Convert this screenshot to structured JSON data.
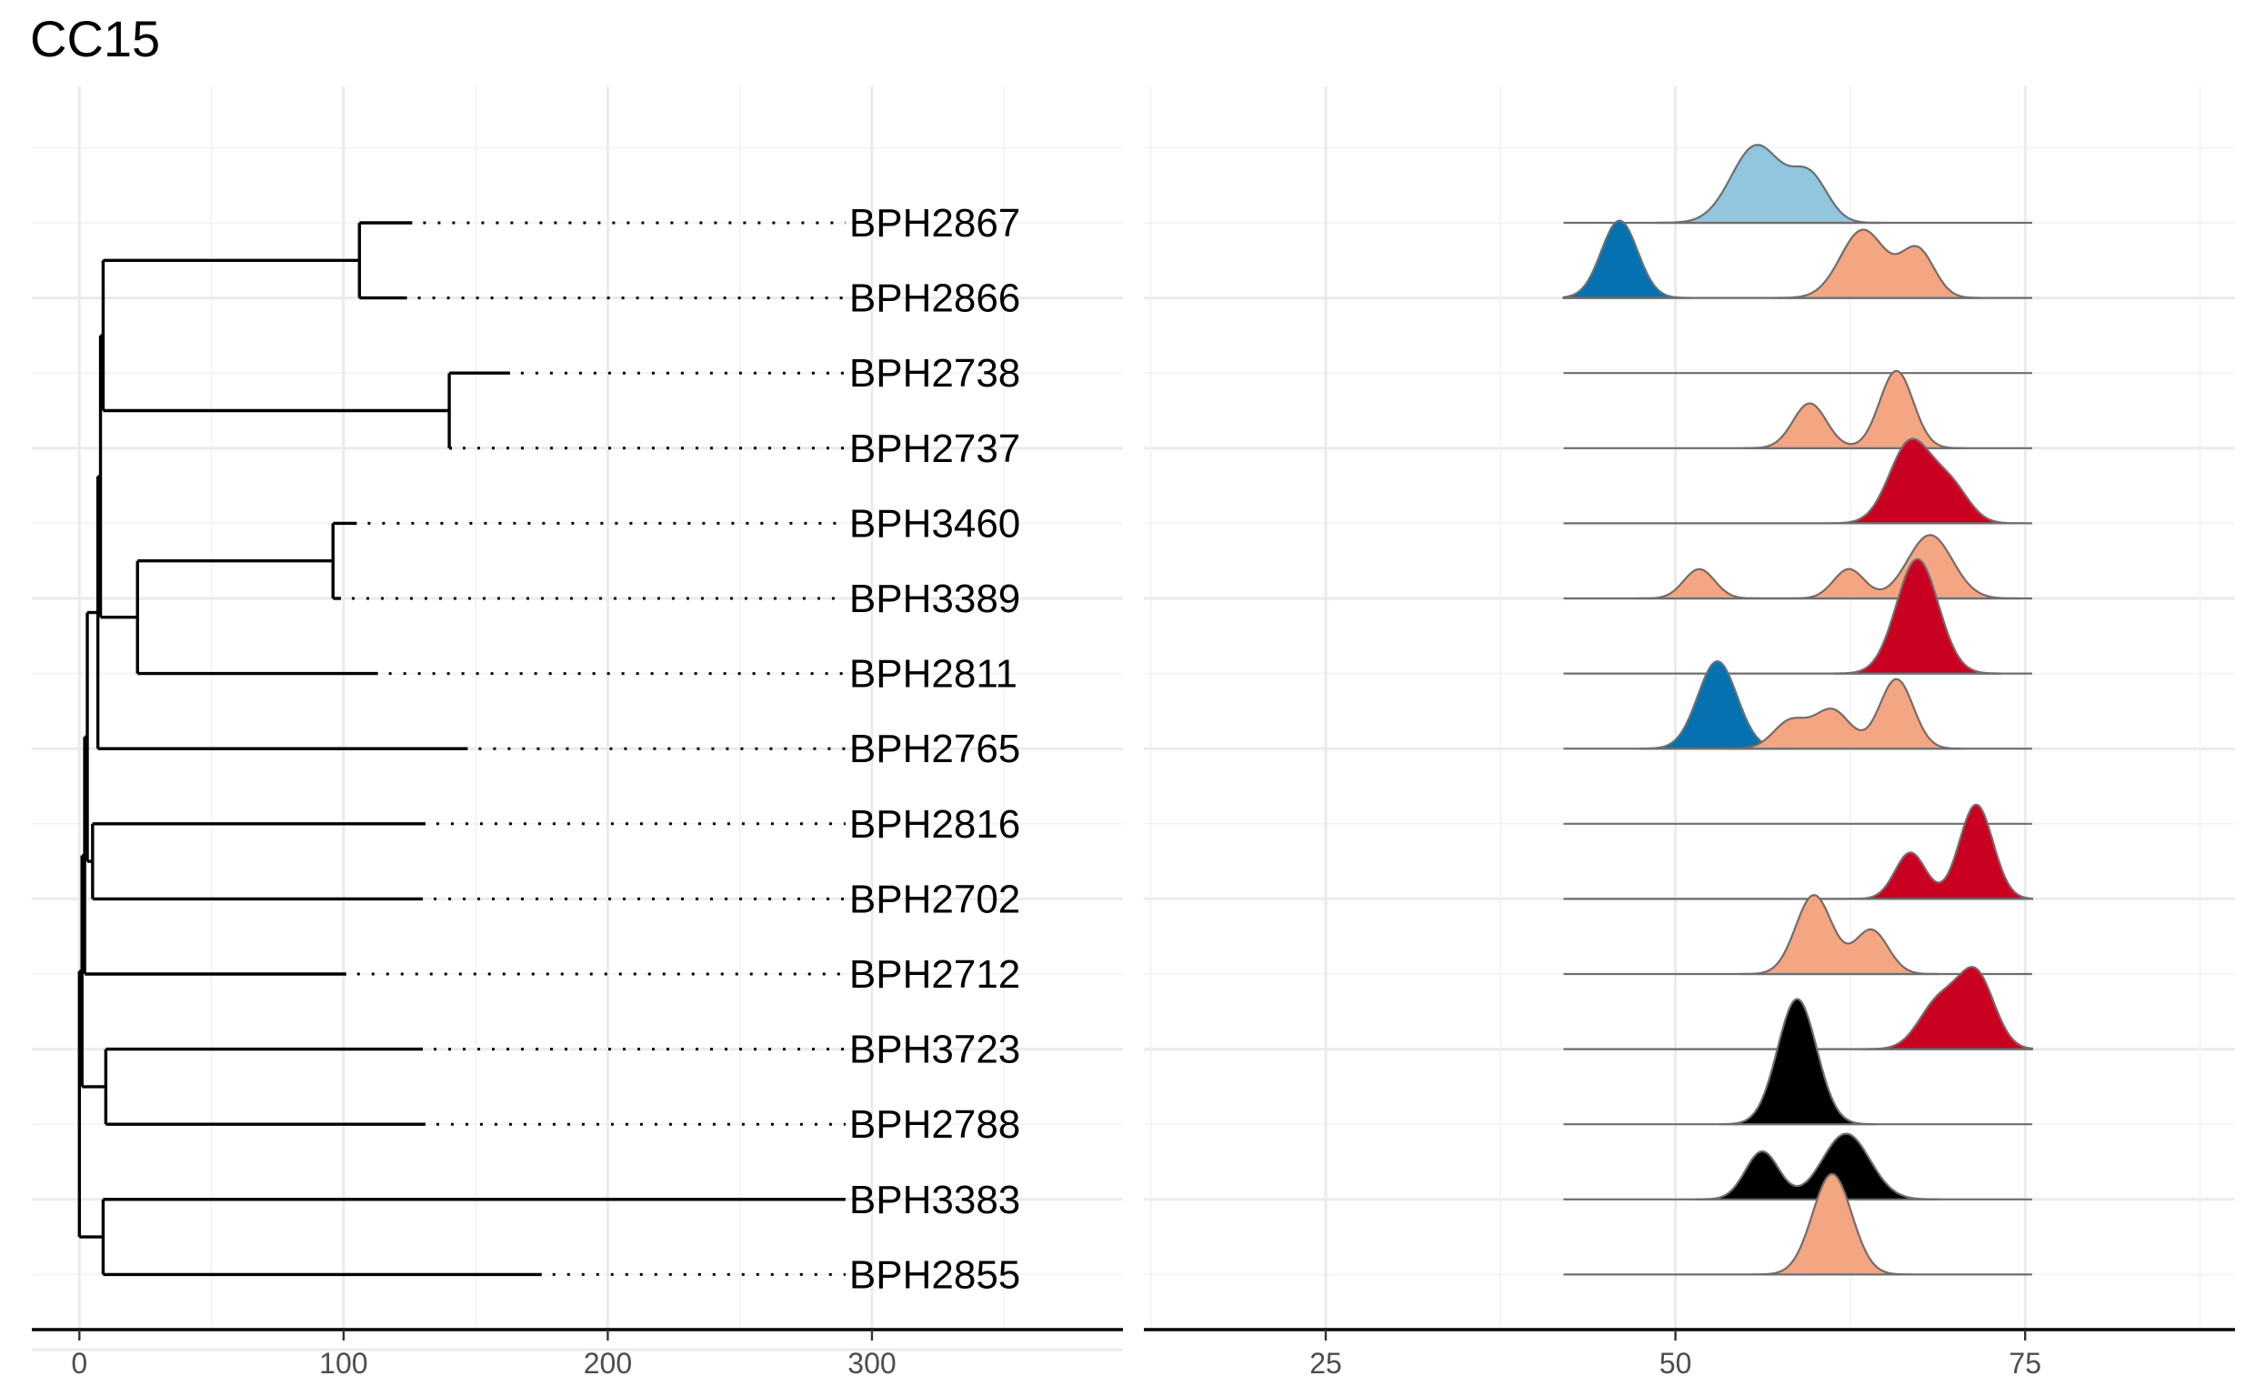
{
  "chart_data": [
    {
      "type": "dendrogram",
      "title": "CC15",
      "xlim": [
        -18,
        395
      ],
      "x_ticks": [
        0,
        100,
        200,
        300
      ],
      "grid": true,
      "tip_align_x": 290,
      "tips": [
        "BPH2867",
        "BPH2866",
        "BPH2738",
        "BPH2737",
        "BPH3460",
        "BPH3389",
        "BPH2811",
        "BPH2765",
        "BPH2816",
        "BPH2702",
        "BPH2712",
        "BPH3723",
        "BPH2788",
        "BPH3383",
        "BPH2855"
      ],
      "tree": {
        "x": 0,
        "children": [
          {
            "x": 1,
            "children": [
              {
                "x": 2,
                "children": [
                  {
                    "x": 3,
                    "children": [
                      {
                        "x": 7,
                        "children": [
                          {
                            "x": 8,
                            "children": [
                              {
                                "x": 9,
                                "children": [
                                  {
                                    "x": 106,
                                    "children": [
                                      {
                                        "tip": "BPH2867",
                                        "x": 126
                                      },
                                      {
                                        "tip": "BPH2866",
                                        "x": 124
                                      }
                                    ]
                                  },
                                  {
                                    "x": 140,
                                    "children": [
                                      {
                                        "tip": "BPH2738",
                                        "x": 163
                                      },
                                      {
                                        "tip": "BPH2737",
                                        "x": 141
                                      }
                                    ]
                                  }
                                ]
                              },
                              {
                                "x": 22,
                                "children": [
                                  {
                                    "x": 96,
                                    "children": [
                                      {
                                        "tip": "BPH3460",
                                        "x": 105
                                      },
                                      {
                                        "tip": "BPH3389",
                                        "x": 99
                                      }
                                    ]
                                  },
                                  {
                                    "tip": "BPH2811",
                                    "x": 113
                                  }
                                ]
                              }
                            ]
                          },
                          {
                            "tip": "BPH2765",
                            "x": 147
                          }
                        ]
                      },
                      {
                        "x": 5,
                        "children": [
                          {
                            "tip": "BPH2816",
                            "x": 131
                          },
                          {
                            "tip": "BPH2702",
                            "x": 130
                          }
                        ]
                      }
                    ]
                  },
                  {
                    "tip": "BPH2712",
                    "x": 101
                  }
                ]
              },
              {
                "x": 10,
                "children": [
                  {
                    "tip": "BPH3723",
                    "x": 130
                  },
                  {
                    "tip": "BPH2788",
                    "x": 131
                  }
                ]
              }
            ]
          },
          {
            "x": 9,
            "children": [
              {
                "tip": "BPH3383",
                "x": 290
              },
              {
                "tip": "BPH2855",
                "x": 175
              }
            ]
          }
        ]
      }
    },
    {
      "type": "ridgeline",
      "xlim": [
        12,
        90
      ],
      "x_ticks": [
        25,
        50,
        75
      ],
      "x_minor": [
        12.5,
        37.5,
        62.5,
        87.5
      ],
      "grid": true,
      "baseline_range": [
        42,
        75.5
      ],
      "colors": {
        "light_blue": "#92c5de",
        "dark_blue": "#0571b0",
        "salmon": "#f4a582",
        "red": "#ca0020",
        "black": "#000000"
      },
      "rows": [
        {
          "tip": "BPH2867",
          "fills": [
            {
              "color": "light_blue",
              "peaks": [
                {
                  "mu": 55.8,
                  "sd": 1.8,
                  "h": 1.0
                },
                {
                  "mu": 59.6,
                  "sd": 1.3,
                  "h": 0.58
                }
              ]
            }
          ]
        },
        {
          "tip": "BPH2866",
          "fills": [
            {
              "color": "dark_blue",
              "peaks": [
                {
                  "mu": 46.0,
                  "sd": 1.3,
                  "h": 1.0
                }
              ]
            },
            {
              "color": "salmon",
              "peaks": [
                {
                  "mu": 63.4,
                  "sd": 1.6,
                  "h": 0.88
                },
                {
                  "mu": 67.3,
                  "sd": 1.2,
                  "h": 0.62
                }
              ]
            }
          ]
        },
        {
          "tip": "BPH2738",
          "fills": []
        },
        {
          "tip": "BPH2737",
          "fills": [
            {
              "color": "salmon",
              "peaks": [
                {
                  "mu": 59.6,
                  "sd": 1.2,
                  "h": 0.58
                },
                {
                  "mu": 65.8,
                  "sd": 1.2,
                  "h": 1.0
                }
              ]
            }
          ]
        },
        {
          "tip": "BPH3460",
          "fills": [
            {
              "color": "red",
              "peaks": [
                {
                  "mu": 66.8,
                  "sd": 1.5,
                  "h": 1.05
                },
                {
                  "mu": 69.7,
                  "sd": 1.3,
                  "h": 0.45
                }
              ]
            }
          ]
        },
        {
          "tip": "BPH3389",
          "fills": [
            {
              "color": "salmon",
              "peaks": [
                {
                  "mu": 51.7,
                  "sd": 1.1,
                  "h": 0.38
                },
                {
                  "mu": 62.4,
                  "sd": 1.1,
                  "h": 0.38
                },
                {
                  "mu": 68.2,
                  "sd": 1.6,
                  "h": 0.82
                }
              ]
            }
          ]
        },
        {
          "tip": "BPH2811",
          "fills": [
            {
              "color": "red",
              "peaks": [
                {
                  "mu": 67.3,
                  "sd": 1.5,
                  "h": 1.48
                }
              ]
            }
          ]
        },
        {
          "tip": "BPH2765",
          "fills": [
            {
              "color": "dark_blue",
              "peaks": [
                {
                  "mu": 53.0,
                  "sd": 1.4,
                  "h": 1.13
                }
              ]
            },
            {
              "color": "salmon",
              "peaks": [
                {
                  "mu": 58.2,
                  "sd": 1.2,
                  "h": 0.35
                },
                {
                  "mu": 61.2,
                  "sd": 1.3,
                  "h": 0.5
                },
                {
                  "mu": 65.8,
                  "sd": 1.2,
                  "h": 0.9
                }
              ]
            }
          ]
        },
        {
          "tip": "BPH2816",
          "fills": []
        },
        {
          "tip": "BPH2702",
          "fills": [
            {
              "color": "red",
              "peaks": [
                {
                  "mu": 66.8,
                  "sd": 1.1,
                  "h": 0.6
                },
                {
                  "mu": 71.5,
                  "sd": 1.2,
                  "h": 1.22
                }
              ]
            }
          ]
        },
        {
          "tip": "BPH2712",
          "fills": [
            {
              "color": "salmon",
              "peaks": [
                {
                  "mu": 59.9,
                  "sd": 1.3,
                  "h": 1.02
                },
                {
                  "mu": 64.0,
                  "sd": 1.2,
                  "h": 0.57
                }
              ]
            }
          ]
        },
        {
          "tip": "BPH3723",
          "fills": [
            {
              "color": "red",
              "peaks": [
                {
                  "mu": 68.8,
                  "sd": 1.4,
                  "h": 0.6
                },
                {
                  "mu": 71.5,
                  "sd": 1.3,
                  "h": 0.95
                }
              ]
            }
          ]
        },
        {
          "tip": "BPH2788",
          "fills": [
            {
              "color": "black",
              "peaks": [
                {
                  "mu": 58.7,
                  "sd": 1.4,
                  "h": 1.62
                }
              ]
            }
          ]
        },
        {
          "tip": "BPH3383",
          "fills": [
            {
              "color": "black",
              "peaks": [
                {
                  "mu": 56.2,
                  "sd": 1.2,
                  "h": 0.62
                },
                {
                  "mu": 62.2,
                  "sd": 1.7,
                  "h": 0.85
                }
              ]
            }
          ]
        },
        {
          "tip": "BPH2855",
          "fills": [
            {
              "color": "salmon",
              "peaks": [
                {
                  "mu": 61.2,
                  "sd": 1.4,
                  "h": 1.3
                }
              ]
            }
          ]
        }
      ]
    }
  ]
}
